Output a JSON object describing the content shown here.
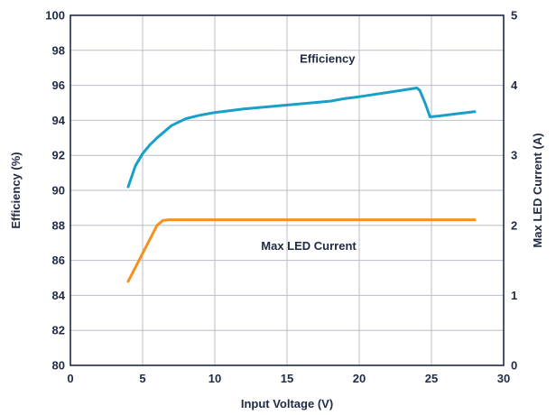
{
  "chart_data": {
    "type": "line",
    "xlabel": "Input Voltage (V)",
    "ylabel": "Efficiency (%)",
    "y2label": "Max LED Current (A)",
    "xlim": [
      0,
      30
    ],
    "ylim": [
      80,
      100
    ],
    "y2lim": [
      0,
      5
    ],
    "xticks": [
      "0",
      "5",
      "10",
      "15",
      "20",
      "25",
      "30"
    ],
    "yticks": [
      "80",
      "82",
      "84",
      "86",
      "88",
      "90",
      "92",
      "94",
      "96",
      "98",
      "100"
    ],
    "y2ticks": [
      "0",
      "1",
      "2",
      "3",
      "4",
      "5"
    ],
    "grid": true,
    "annotations": [
      {
        "name": "efficiency-label",
        "text": "Efficiency",
        "x": 17.8,
        "y": 97.3
      },
      {
        "name": "current-label",
        "text": "Max LED Current",
        "x": 16.5,
        "y": 86.6
      }
    ],
    "series": [
      {
        "name": "Efficiency",
        "axis": "left",
        "color": "#1aa0c8",
        "x": [
          4,
          4.5,
          5,
          5.5,
          6,
          7,
          8,
          9,
          10,
          11,
          12,
          14,
          16,
          18,
          19,
          20,
          22,
          24,
          24.2,
          24.6,
          24.9,
          25.5,
          26.5,
          28
        ],
        "y": [
          90.2,
          91.4,
          92.1,
          92.6,
          93.0,
          93.7,
          94.1,
          94.3,
          94.45,
          94.55,
          94.65,
          94.8,
          94.95,
          95.1,
          95.25,
          95.35,
          95.6,
          95.85,
          95.7,
          94.9,
          94.2,
          94.25,
          94.35,
          94.5
        ]
      },
      {
        "name": "Max LED Current",
        "axis": "right",
        "color": "#f7901e",
        "x": [
          4,
          4.5,
          5,
          5.5,
          6,
          6.4,
          6.8,
          7.2,
          10,
          15,
          20,
          25,
          28
        ],
        "y": [
          1.2,
          1.4,
          1.6,
          1.8,
          2.0,
          2.07,
          2.08,
          2.08,
          2.08,
          2.08,
          2.08,
          2.08,
          2.08
        ]
      }
    ]
  }
}
